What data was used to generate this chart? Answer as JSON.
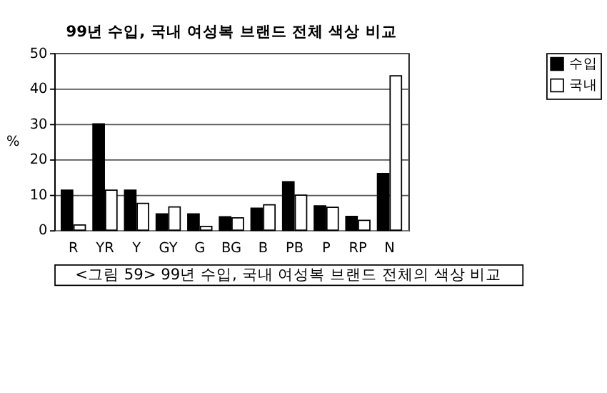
{
  "chart_data": {
    "type": "bar",
    "title": "99년 수입, 국내 여성복 브랜드 전체 색상 비교",
    "ylabel": "%",
    "categories": [
      "R",
      "YR",
      "Y",
      "GY",
      "G",
      "BG",
      "B",
      "PB",
      "P",
      "RP",
      "N"
    ],
    "series": [
      {
        "name": "수입",
        "color": "#000000",
        "values": [
          11.3,
          30,
          11.3,
          4.6,
          4.6,
          3.8,
          6.2,
          13.7,
          6.9,
          3.9,
          16
        ]
      },
      {
        "name": "국내",
        "color": "#ffffff",
        "values": [
          1.5,
          11.3,
          7.6,
          6.6,
          1.1,
          3.5,
          7.2,
          9.9,
          6.5,
          2.8,
          43.6
        ]
      }
    ],
    "ylim": [
      0,
      50
    ],
    "yticks": [
      0,
      10,
      20,
      30,
      40,
      50
    ],
    "grid": "y",
    "legend": "right",
    "annotations": [
      "<그림 59> 99년 수입, 국내 여성복 브랜드 전체의 색상 비교"
    ]
  }
}
